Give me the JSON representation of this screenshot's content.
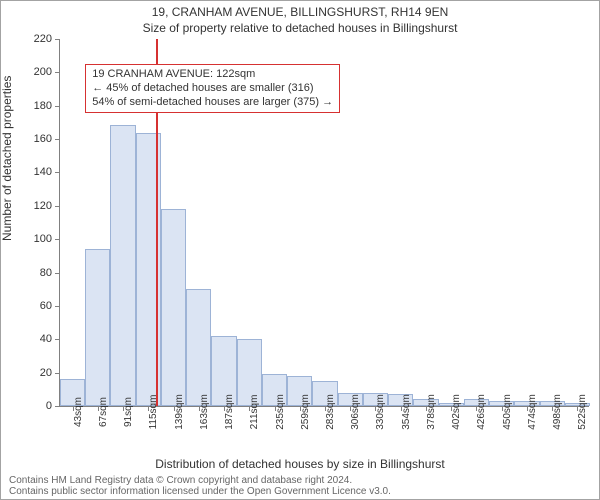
{
  "title": "19, CRANHAM AVENUE, BILLINGSHURST, RH14 9EN",
  "subtitle": "Size of property relative to detached houses in Billingshurst",
  "ylabel": "Number of detached properties",
  "xlabel": "Distribution of detached houses by size in Billingshurst",
  "attribution_line1": "Contains HM Land Registry data © Crown copyright and database right 2024.",
  "attribution_line2": "Contains public sector information licensed under the Open Government Licence v3.0.",
  "chart": {
    "type": "histogram",
    "bar_fill": "#dbe4f3",
    "bar_stroke": "#9db3d6",
    "axis_color": "#808080",
    "background_color": "#ffffff",
    "marker_color": "#d63131",
    "marker_value_sqm": 122,
    "xmin_sqm": 31,
    "bin_width_sqm": 24,
    "ylim": [
      0,
      220
    ],
    "ytick_step": 20,
    "categories": [
      "43sqm",
      "67sqm",
      "91sqm",
      "115sqm",
      "139sqm",
      "163sqm",
      "187sqm",
      "211sqm",
      "235sqm",
      "259sqm",
      "283sqm",
      "306sqm",
      "330sqm",
      "354sqm",
      "378sqm",
      "402sqm",
      "426sqm",
      "450sqm",
      "474sqm",
      "498sqm",
      "522sqm"
    ],
    "values": [
      16,
      94,
      168,
      163,
      118,
      70,
      42,
      40,
      19,
      18,
      15,
      8,
      8,
      7,
      4,
      2,
      4,
      3,
      3,
      3,
      2
    ],
    "title_fontsize": 12,
    "label_fontsize": 12,
    "tick_fontsize": 10
  },
  "annotation": {
    "lines": [
      "19 CRANHAM AVENUE: 122sqm",
      "← 45% of detached houses are smaller (316)",
      "54% of semi-detached houses are larger (375) →"
    ],
    "border_color": "#d63131",
    "background_color": "#ffffff",
    "fontsize": 11,
    "left_sqm": 55,
    "top_from_ymax": 205
  }
}
